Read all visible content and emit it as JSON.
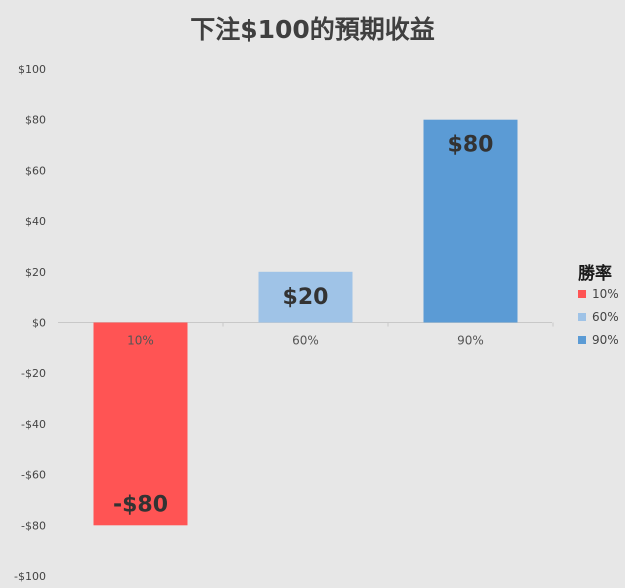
{
  "chart_data": {
    "type": "bar",
    "title": "下注$100的預期收益",
    "xlabel": "",
    "ylabel": "",
    "categories": [
      "10%",
      "60%",
      "90%"
    ],
    "values": [
      -80,
      20,
      80
    ],
    "data_labels": [
      "-$80",
      "$20",
      "$80"
    ],
    "ylim": [
      -100,
      100
    ],
    "y_ticks": [
      100,
      80,
      60,
      40,
      20,
      0,
      -20,
      -40,
      -60,
      -80,
      -100
    ],
    "y_tick_labels": [
      "$100",
      "$80",
      "$60",
      "$40",
      "$20",
      "$0",
      "-$20",
      "-$40",
      "-$60",
      "-$80",
      "-$100"
    ],
    "colors": [
      "#ff5454",
      "#9fc3e7",
      "#5b9bd5"
    ],
    "grid": false,
    "legend": {
      "title": "勝率",
      "placement": "right",
      "entries": [
        "10%",
        "60%",
        "90%"
      ]
    }
  }
}
